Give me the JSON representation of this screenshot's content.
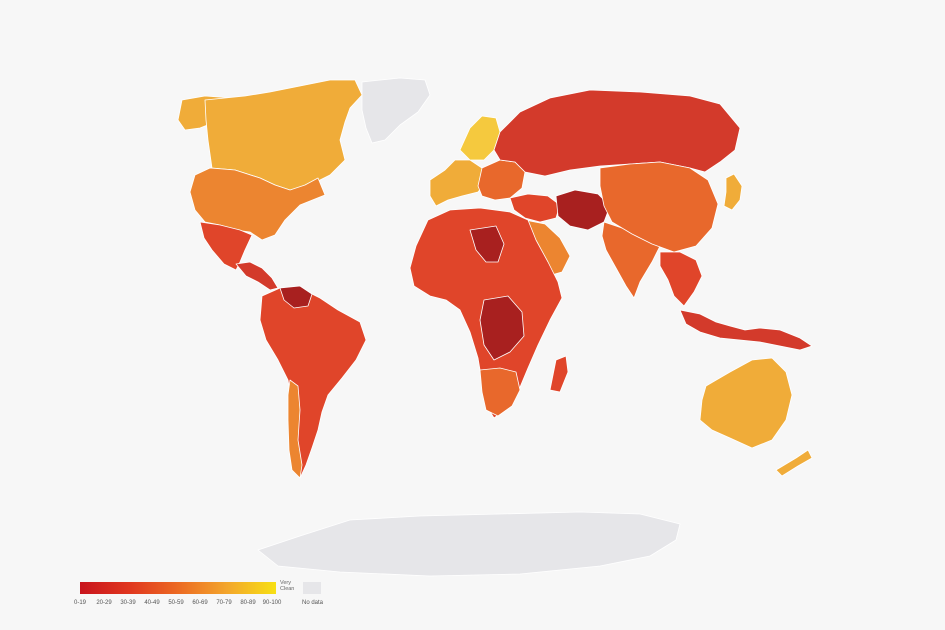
{
  "map": {
    "colors": {
      "very_corrupt": "#a8201f",
      "corrupt": "#c92a26",
      "red": "#d33a2b",
      "red_orange": "#e0452a",
      "orange": "#e8682c",
      "orange_light": "#ec8530",
      "gold": "#f0ac39",
      "yellow": "#f5c93e",
      "nodata": "#e6e6e9"
    },
    "regions": [
      {
        "name": "north-america-usa",
        "color_key": "orange_light"
      },
      {
        "name": "canada",
        "color_key": "gold"
      },
      {
        "name": "alaska",
        "color_key": "gold"
      },
      {
        "name": "greenland",
        "color_key": "nodata"
      },
      {
        "name": "mexico",
        "color_key": "red_orange"
      },
      {
        "name": "central-america",
        "color_key": "red"
      },
      {
        "name": "south-america",
        "color_key": "red_orange"
      },
      {
        "name": "venezuela",
        "color_key": "very_corrupt"
      },
      {
        "name": "chile",
        "color_key": "orange_light"
      },
      {
        "name": "europe-west",
        "color_key": "gold"
      },
      {
        "name": "scandinavia",
        "color_key": "yellow"
      },
      {
        "name": "europe-east",
        "color_key": "orange"
      },
      {
        "name": "russia",
        "color_key": "red"
      },
      {
        "name": "middle-east",
        "color_key": "red_orange"
      },
      {
        "name": "arabia",
        "color_key": "orange_light"
      },
      {
        "name": "iran-region",
        "color_key": "very_corrupt"
      },
      {
        "name": "africa",
        "color_key": "red_orange"
      },
      {
        "name": "central-africa",
        "color_key": "very_corrupt"
      },
      {
        "name": "southern-africa",
        "color_key": "orange"
      },
      {
        "name": "madagascar",
        "color_key": "red_orange"
      },
      {
        "name": "india",
        "color_key": "orange"
      },
      {
        "name": "china",
        "color_key": "orange"
      },
      {
        "name": "southeast-asia",
        "color_key": "red_orange"
      },
      {
        "name": "indonesia",
        "color_key": "red"
      },
      {
        "name": "japan",
        "color_key": "gold"
      },
      {
        "name": "australia",
        "color_key": "gold"
      },
      {
        "name": "new-zealand",
        "color_key": "gold"
      },
      {
        "name": "antarctica",
        "color_key": "nodata"
      }
    ]
  },
  "legend": {
    "ticks": [
      "0-19",
      "20-29",
      "30-39",
      "40-49",
      "50-59",
      "60-69",
      "70-79",
      "80-89",
      "90-100"
    ],
    "clean_label": "Very Clean",
    "nodata_label": "No data"
  }
}
